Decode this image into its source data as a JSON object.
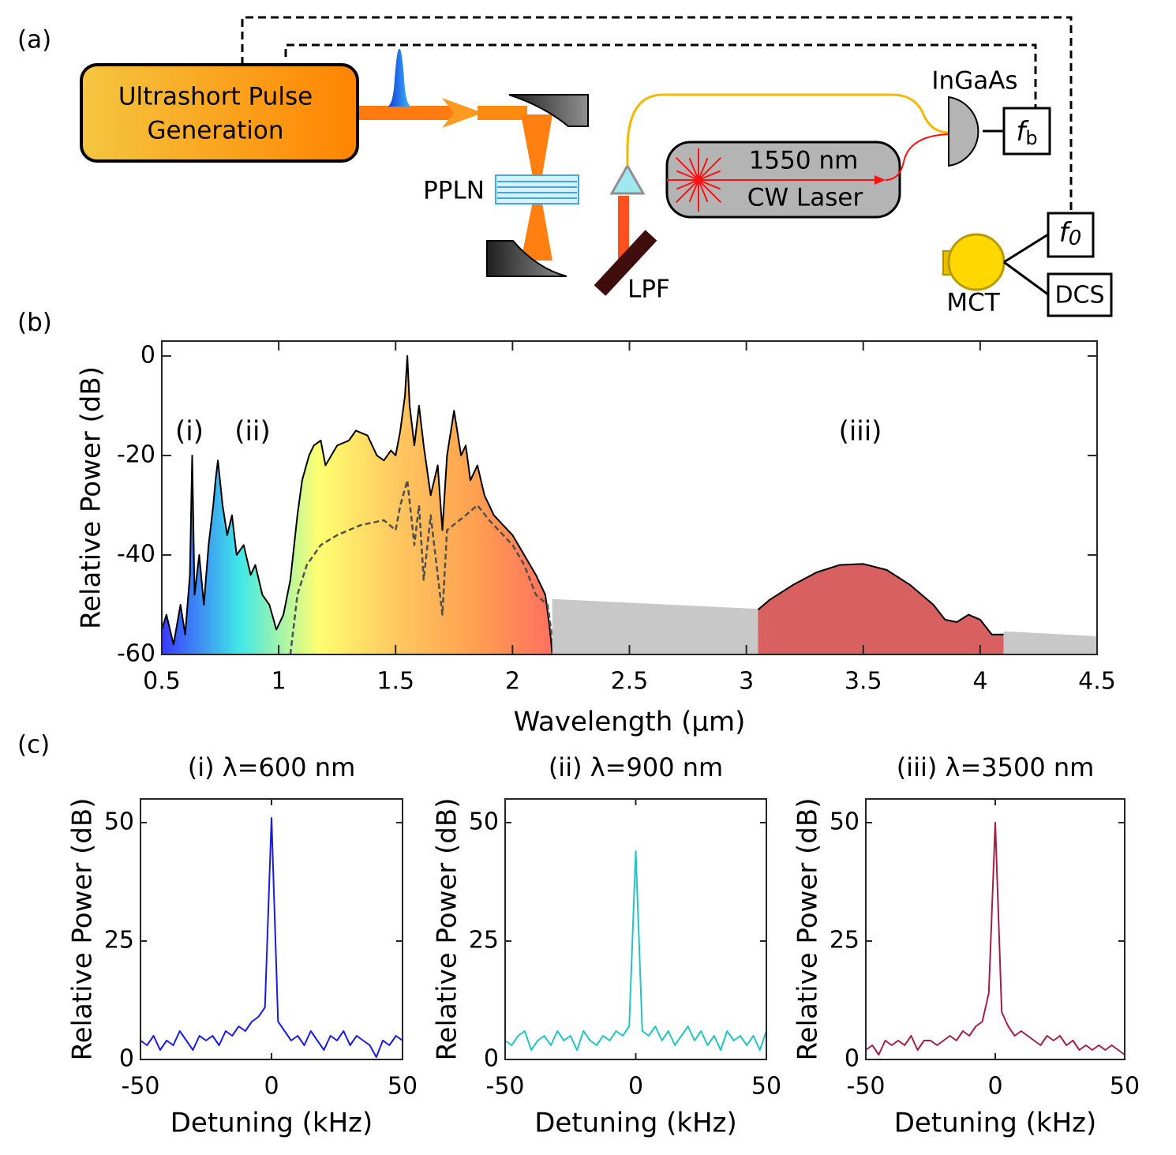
{
  "panels": [
    "(a)",
    "(b)",
    "(c)"
  ],
  "diagram": {
    "source": [
      "Ultrashort Pulse",
      "Generation"
    ],
    "crystal": "PPLN",
    "filter": "LPF",
    "laser": [
      "1550 nm",
      "CW Laser"
    ],
    "nir_detector": "InGaAs",
    "mir_detector": "MCT",
    "beat_note": {
      "symbol": "f",
      "subscript": "b"
    },
    "offset": {
      "symbol": "f",
      "subscript": "0"
    },
    "dcs": "DCS"
  },
  "chart_data": [
    {
      "type": "line",
      "xlabel": "Wavelength (μm)",
      "ylabel": "Relative Power (dB)",
      "annotations": [
        "(i)",
        "(ii)",
        "(iii)"
      ],
      "xlim": [
        0.5,
        4.5
      ],
      "ylim": [
        -60,
        3
      ],
      "xticks": [
        0.5,
        1,
        1.5,
        2,
        2.5,
        3,
        3.5,
        4,
        4.5
      ],
      "yticks": [
        -60,
        -40,
        -20,
        0
      ],
      "series": [
        {
          "color": "#000000",
          "fill_gradient": [
            "#3a3aff",
            "#40e8e8",
            "#ffff70",
            "#ffc860",
            "#ffa050",
            "#ff7060"
          ],
          "x": [
            0.5,
            0.52,
            0.55,
            0.58,
            0.6,
            0.62,
            0.63,
            0.64,
            0.66,
            0.68,
            0.7,
            0.72,
            0.73,
            0.74,
            0.76,
            0.78,
            0.8,
            0.82,
            0.85,
            0.88,
            0.9,
            0.93,
            0.96,
            0.99,
            1.02,
            1.05,
            1.08,
            1.1,
            1.13,
            1.15,
            1.18,
            1.2,
            1.25,
            1.3,
            1.33,
            1.38,
            1.42,
            1.45,
            1.48,
            1.5,
            1.52,
            1.54,
            1.55,
            1.56,
            1.58,
            1.6,
            1.62,
            1.65,
            1.68,
            1.7,
            1.72,
            1.75,
            1.78,
            1.8,
            1.82,
            1.85,
            1.88,
            1.92,
            1.96,
            2,
            2.05,
            2.1,
            2.14,
            2.16,
            2.17
          ],
          "values": [
            -55,
            -52,
            -58,
            -50,
            -56,
            -44,
            -20,
            -48,
            -40,
            -50,
            -38,
            -30,
            -25,
            -21,
            -30,
            -36,
            -32,
            -40,
            -38,
            -44,
            -42,
            -48,
            -50,
            -55,
            -52,
            -45,
            -32,
            -25,
            -20,
            -18,
            -17,
            -22,
            -18,
            -17,
            -15,
            -16,
            -20,
            -21,
            -19,
            -20,
            -15,
            -8,
            0,
            -10,
            -18,
            -10,
            -18,
            -28,
            -22,
            -35,
            -20,
            -11,
            -20,
            -18,
            -25,
            -22,
            -28,
            -32,
            -34,
            -36,
            -40,
            -44,
            -48,
            -55,
            -60
          ]
        },
        {
          "color": "#505050",
          "dashed": true,
          "x": [
            1.05,
            1.08,
            1.12,
            1.18,
            1.25,
            1.35,
            1.45,
            1.5,
            1.52,
            1.55,
            1.58,
            1.6,
            1.62,
            1.65,
            1.7,
            1.72,
            1.8,
            1.85,
            1.9,
            2,
            2.05,
            2.1,
            2.15,
            2.18
          ],
          "values": [
            -60,
            -48,
            -42,
            -38,
            -36,
            -34,
            -33,
            -35,
            -30,
            -25,
            -38,
            -30,
            -45,
            -32,
            -52,
            -35,
            -32,
            -30,
            -33,
            -38,
            -42,
            -48,
            -50,
            -60
          ]
        },
        {
          "color": "#c8c8c8",
          "fill": "#c8c8c8",
          "x": [
            2.17,
            3.05
          ],
          "values": [
            -49,
            -51
          ]
        },
        {
          "color": "#000000",
          "fill": "#d86060",
          "x": [
            3.05,
            3.1,
            3.2,
            3.3,
            3.4,
            3.5,
            3.6,
            3.7,
            3.8,
            3.85,
            3.9,
            3.95,
            4,
            4.05,
            4.1
          ],
          "values": [
            -51,
            -49,
            -46,
            -43.5,
            -42,
            -41.8,
            -43,
            -46,
            -50,
            -53,
            -53.5,
            -52,
            -53,
            -56,
            -56
          ]
        },
        {
          "color": "#c8c8c8",
          "fill": "#c8c8c8",
          "x": [
            4.1,
            4.5
          ],
          "values": [
            -55.5,
            -56.5
          ]
        }
      ]
    },
    {
      "type": "line",
      "title": "(i) λ=600 nm",
      "xlabel": "Detuning (kHz)",
      "ylabel": "Relative Power (dB)",
      "xlim": [
        -50,
        50
      ],
      "ylim": [
        0,
        55
      ],
      "xticks": [
        -50,
        0,
        50
      ],
      "yticks": [
        0,
        25,
        50
      ],
      "x": [
        -50,
        -47.5,
        -45,
        -42.5,
        -40,
        -37.5,
        -35,
        -32.5,
        -30,
        -27.5,
        -25,
        -22.5,
        -20,
        -17.5,
        -15,
        -12.5,
        -10,
        -7.5,
        -5,
        -2.5,
        0,
        2.5,
        5,
        7.5,
        10,
        12.5,
        15,
        17.5,
        20,
        22.5,
        25,
        27.5,
        30,
        32.5,
        35,
        37.5,
        40,
        42.5,
        45,
        47.5,
        50
      ],
      "series": [
        {
          "color": "#1a1ae6",
          "values": [
            4,
            3,
            5,
            2,
            4,
            3,
            6,
            4,
            2,
            5,
            4,
            5,
            3,
            6,
            5,
            7,
            6,
            8,
            9,
            11,
            51,
            8,
            6,
            4,
            5,
            3,
            6,
            4,
            2,
            5,
            4,
            6,
            3,
            5,
            4,
            3,
            0.5,
            4,
            3,
            5,
            4
          ]
        }
      ]
    },
    {
      "type": "line",
      "title": "(ii) λ=900 nm",
      "xlabel": "Detuning (kHz)",
      "ylabel": "Relative Power (dB)",
      "xlim": [
        -50,
        50
      ],
      "ylim": [
        0,
        55
      ],
      "xticks": [
        -50,
        0,
        50
      ],
      "yticks": [
        0,
        25,
        50
      ],
      "x": [
        -50,
        -47.5,
        -45,
        -42.5,
        -40,
        -37.5,
        -35,
        -32.5,
        -30,
        -27.5,
        -25,
        -22.5,
        -20,
        -17.5,
        -15,
        -12.5,
        -10,
        -7.5,
        -5,
        -2.5,
        0,
        2.5,
        5,
        7.5,
        10,
        12.5,
        15,
        17.5,
        20,
        22.5,
        25,
        27.5,
        30,
        32.5,
        35,
        37.5,
        40,
        42.5,
        45,
        47.5,
        50
      ],
      "series": [
        {
          "color": "#22c4c4",
          "values": [
            4,
            3,
            5,
            6,
            2,
            4,
            5,
            3,
            6,
            4,
            5,
            2,
            6,
            4,
            3,
            5,
            4,
            6,
            5,
            7,
            44,
            6,
            5,
            7,
            4,
            6,
            3,
            5,
            7,
            4,
            6,
            3,
            5,
            2,
            6,
            4,
            5,
            3,
            5,
            2,
            6
          ]
        }
      ]
    },
    {
      "type": "line",
      "title": "(iii) λ=3500 nm",
      "xlabel": "Detuning (kHz)",
      "ylabel": "Relative Power (dB)",
      "xlim": [
        -50,
        50
      ],
      "ylim": [
        0,
        55
      ],
      "xticks": [
        -50,
        0,
        50
      ],
      "yticks": [
        0,
        25,
        50
      ],
      "x": [
        -50,
        -47.5,
        -45,
        -42.5,
        -40,
        -37.5,
        -35,
        -32.5,
        -30,
        -27.5,
        -25,
        -22.5,
        -20,
        -17.5,
        -15,
        -12.5,
        -10,
        -7.5,
        -5,
        -2.5,
        0,
        2.5,
        5,
        7.5,
        10,
        12.5,
        15,
        17.5,
        20,
        22.5,
        25,
        27.5,
        30,
        32.5,
        35,
        37.5,
        40,
        42.5,
        45,
        47.5,
        50
      ],
      "series": [
        {
          "color": "#a31f45",
          "values": [
            2,
            3,
            1,
            4,
            3,
            4,
            3,
            5,
            2,
            4,
            4,
            3,
            4,
            5,
            4,
            6,
            5,
            7,
            8,
            14,
            50,
            10,
            7,
            5,
            6,
            5,
            4,
            3,
            5,
            4,
            5,
            3,
            4,
            2,
            3,
            2,
            3,
            2,
            3,
            2,
            1
          ]
        }
      ]
    }
  ]
}
